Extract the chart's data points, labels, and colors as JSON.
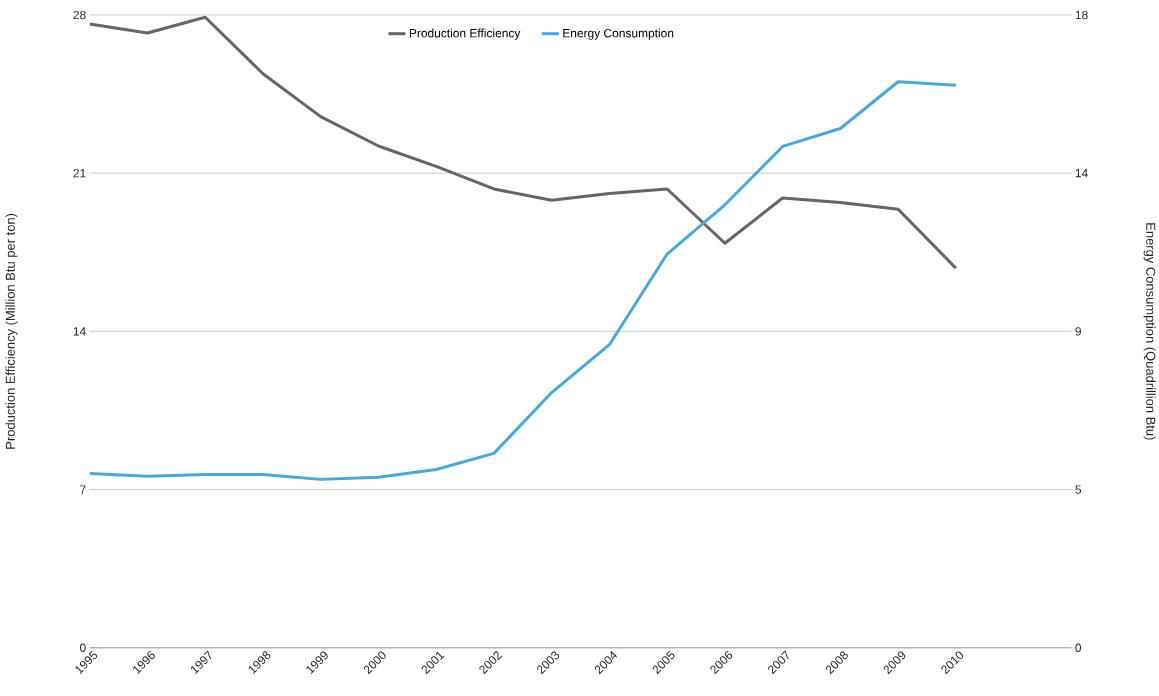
{
  "chart_data": {
    "type": "line",
    "x": [
      1995,
      1996,
      1997,
      1998,
      1999,
      2000,
      2001,
      2002,
      2003,
      2004,
      2005,
      2006,
      2007,
      2008,
      2009,
      2010
    ],
    "series": [
      {
        "name": "Production Efficiency",
        "color": "#666666",
        "values": [
          27.6,
          27.2,
          27.9,
          25.4,
          23.5,
          22.2,
          21.3,
          20.3,
          19.8,
          20.1,
          20.3,
          17.9,
          19.9,
          19.7,
          19.4,
          16.8
        ]
      },
      {
        "name": "Energy Consumption",
        "color": "#4aa8d8",
        "axis": "y2",
        "values": [
          4.96,
          4.88,
          4.93,
          4.93,
          4.79,
          4.85,
          5.07,
          5.53,
          7.26,
          8.62,
          11.2,
          12.6,
          14.26,
          14.77,
          16.1,
          16.0
        ]
      }
    ],
    "ylabel": "Production Efficiency (Million Btu per ton)",
    "y2label": "Energy Consumption (Quadrillion Btu)",
    "xlim": [
      1995,
      2012
    ],
    "xticks": [
      1995,
      1996,
      1997,
      1998,
      1999,
      2000,
      2001,
      2002,
      2003,
      2004,
      2005,
      2006,
      2007,
      2008,
      2009,
      2010
    ],
    "ylim": [
      0,
      28
    ],
    "yticks": [
      0,
      7,
      14,
      21,
      28
    ],
    "y2lim": [
      0,
      18
    ],
    "y2ticks": [
      0,
      {
        "value": 4.5,
        "label": "5"
      },
      9,
      {
        "value": 13.5,
        "label": "14"
      },
      18
    ],
    "grid": "y",
    "legend": "top",
    "marker": "none",
    "line_style": "solid"
  }
}
